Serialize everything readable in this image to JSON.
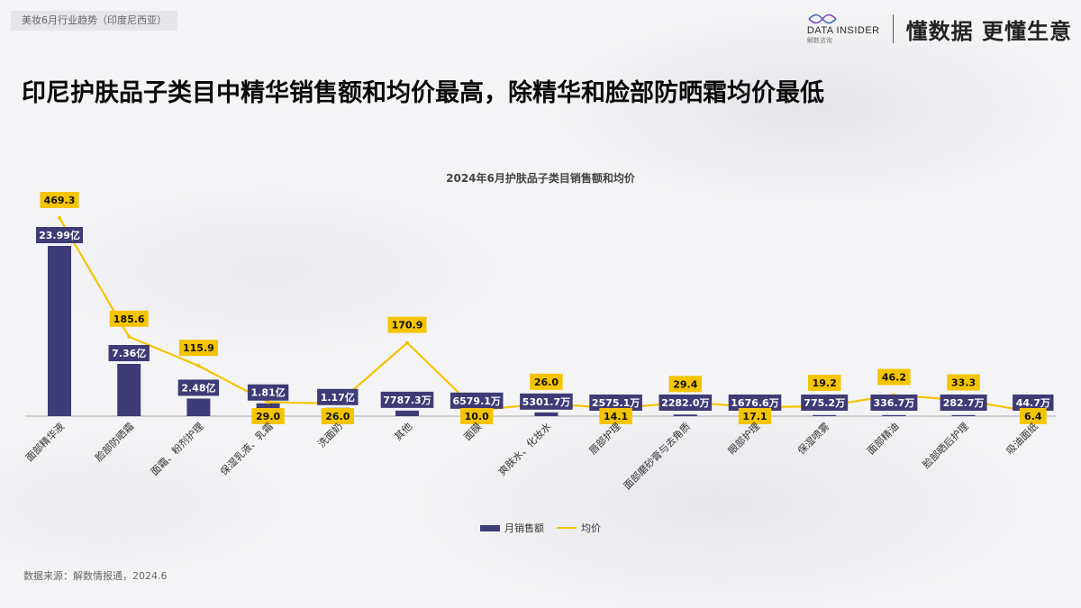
{
  "header": {
    "tag": "美妆6月行业趋势（印度尼西亚）",
    "logo_text": "DATA INSIDER",
    "logo_sub": "解数咨询",
    "slogan": "懂数据 更懂生意"
  },
  "headline": "印尼护肤品子类目中精华销售额和均价最高，除精华和脸部防晒霜均价最低",
  "source": "数据来源：解数情报通，2024.6",
  "colors": {
    "bar": "#3e3b76",
    "line": "#f5c400",
    "line_label_bg": "#f5c400"
  },
  "chart_data": {
    "type": "bar+line",
    "title": "2024年6月护肤品子类目销售额和均价",
    "categories": [
      "面部精华液",
      "脸部防晒霜",
      "面霜、粉剂护理",
      "保湿乳液、乳霜",
      "洗面奶",
      "其他",
      "面膜",
      "爽肤水、化妆水",
      "唇部护理",
      "面部磨砂膏与去角质",
      "眼部护理",
      "保湿喷雾",
      "面部精油",
      "脸部晒后护理",
      "吸油面纸"
    ],
    "series": [
      {
        "name": "月销售额",
        "type": "bar",
        "values_yi": [
          23.99,
          7.36,
          2.48,
          1.81,
          1.17,
          0.77873,
          0.65791,
          0.53017,
          0.25751,
          0.2282,
          0.16766,
          0.07752,
          0.03367,
          0.02827,
          0.00447
        ],
        "labels": [
          "23.99亿",
          "7.36亿",
          "2.48亿",
          "1.81亿",
          "1.17亿",
          "7787.3万",
          "6579.1万",
          "5301.7万",
          "2575.1万",
          "2282.0万",
          "1676.6万",
          "775.2万",
          "336.7万",
          "282.7万",
          "44.7万"
        ]
      },
      {
        "name": "均价",
        "type": "line",
        "values": [
          469.3,
          185.6,
          115.9,
          29.0,
          26.0,
          170.9,
          10.0,
          26.0,
          14.1,
          29.4,
          17.1,
          19.2,
          46.2,
          33.3,
          6.4
        ],
        "labels": [
          "469.3",
          "185.6",
          "115.9",
          "29.0",
          "26.0",
          "170.9",
          "10.0",
          "26.0",
          "14.1",
          "29.4",
          "17.1",
          "19.2",
          "46.2",
          "33.3",
          "6.4"
        ]
      }
    ],
    "legend": {
      "position": "bottom"
    }
  }
}
